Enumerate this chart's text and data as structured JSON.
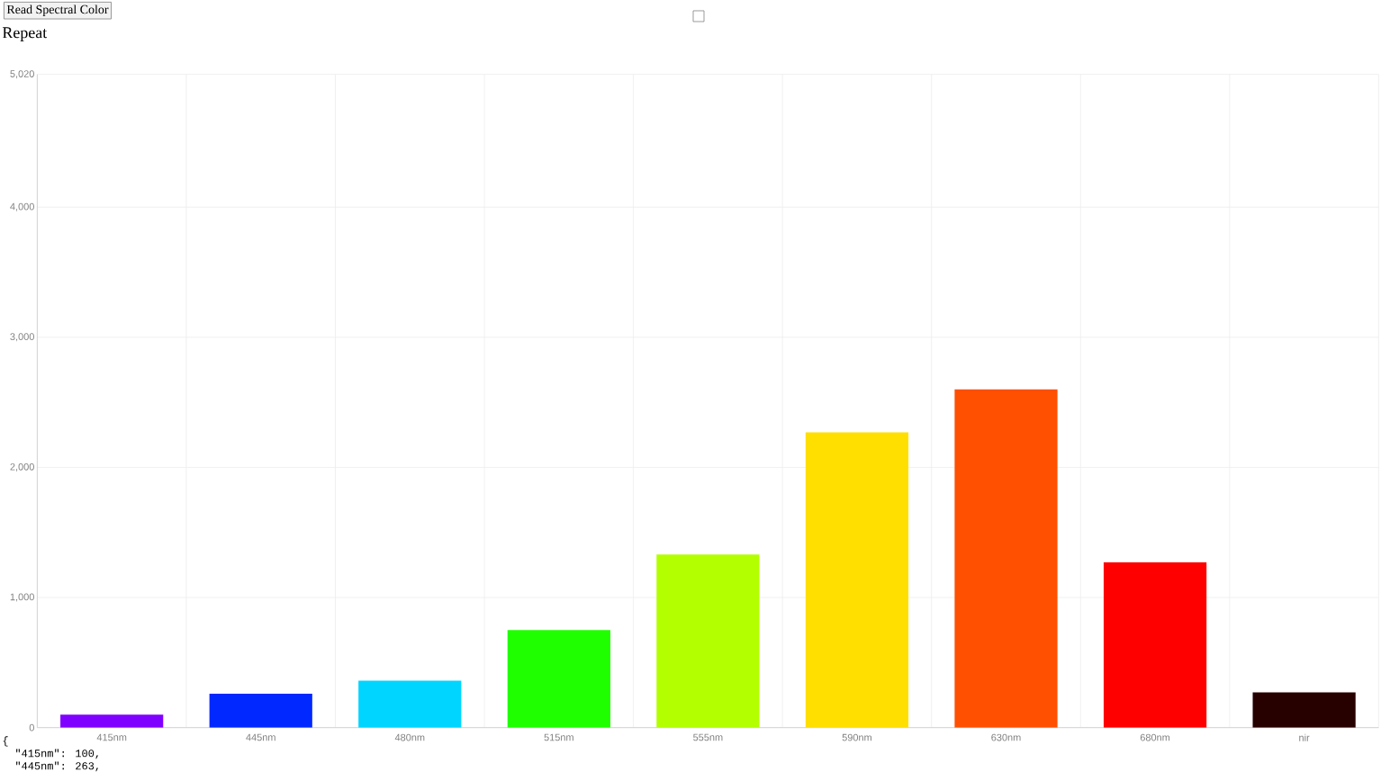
{
  "chart_data": {
    "type": "bar",
    "categories": [
      "415nm",
      "445nm",
      "480nm",
      "515nm",
      "555nm",
      "590nm",
      "630nm",
      "680nm",
      "nir"
    ],
    "values": [
      100,
      260,
      360,
      750,
      1330,
      2270,
      2600,
      1270,
      270
    ],
    "colors": [
      "#8000ff",
      "#0028ff",
      "#00d5ff",
      "#1fff00",
      "#b3ff00",
      "#ffdf00",
      "#ff4f00",
      "#ff0000",
      "#270000"
    ],
    "ylim": [
      0,
      5020
    ],
    "yticks": [
      0,
      {
        "value": 1000,
        "label": "1,000"
      },
      {
        "value": 2000,
        "label": "2,000"
      },
      {
        "value": 3000,
        "label": "3,000"
      },
      {
        "value": 4000,
        "label": "4,000"
      },
      {
        "value": 5020,
        "label": "5,020"
      }
    ],
    "grid": true,
    "annotations": [
      "Read Spectral Color",
      "Repeat",
      "{",
      "\"415nm\": 100,",
      "\"445nm\": 263,"
    ]
  }
}
